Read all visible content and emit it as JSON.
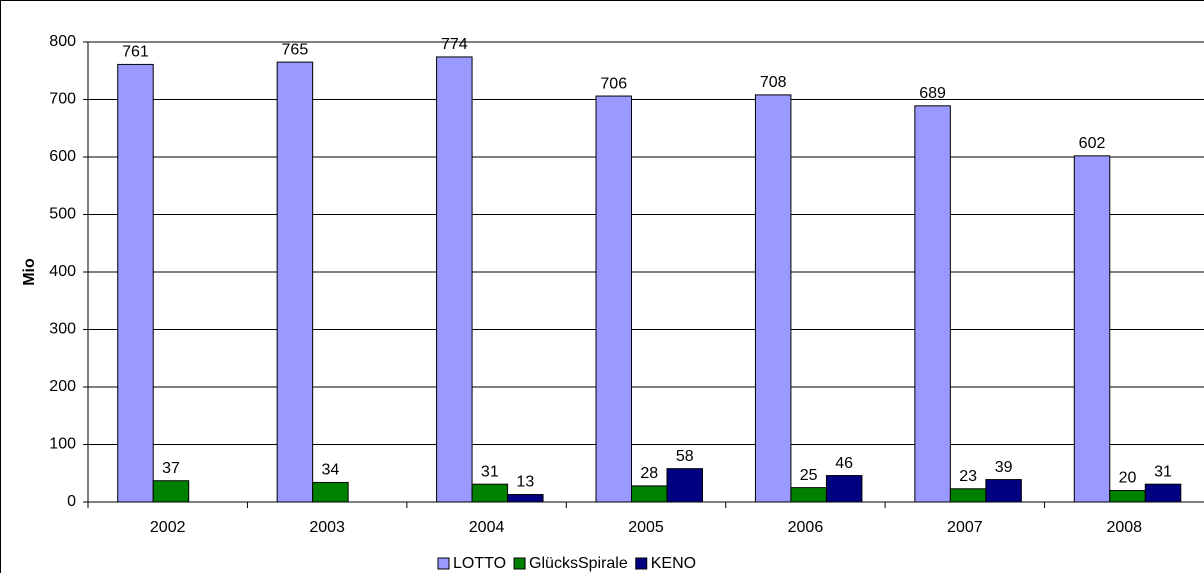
{
  "chart_data": {
    "type": "bar",
    "y_label": "Mio",
    "categories": [
      "2002",
      "2003",
      "2004",
      "2005",
      "2006",
      "2007",
      "2008"
    ],
    "series": [
      {
        "name": "LOTTO",
        "color": "#9999ff",
        "values": [
          761,
          765,
          774,
          706,
          708,
          689,
          602
        ]
      },
      {
        "name": "GlücksSpirale",
        "color": "#008000",
        "values": [
          37,
          34,
          31,
          28,
          25,
          23,
          20
        ]
      },
      {
        "name": "KENO",
        "color": "#000080",
        "values": [
          null,
          null,
          13,
          58,
          46,
          39,
          31
        ]
      }
    ],
    "ylim": [
      0,
      800
    ],
    "yticks": [
      0,
      100,
      200,
      300,
      400,
      500,
      600,
      700,
      800
    ],
    "grid": true,
    "legend": "bottom"
  }
}
